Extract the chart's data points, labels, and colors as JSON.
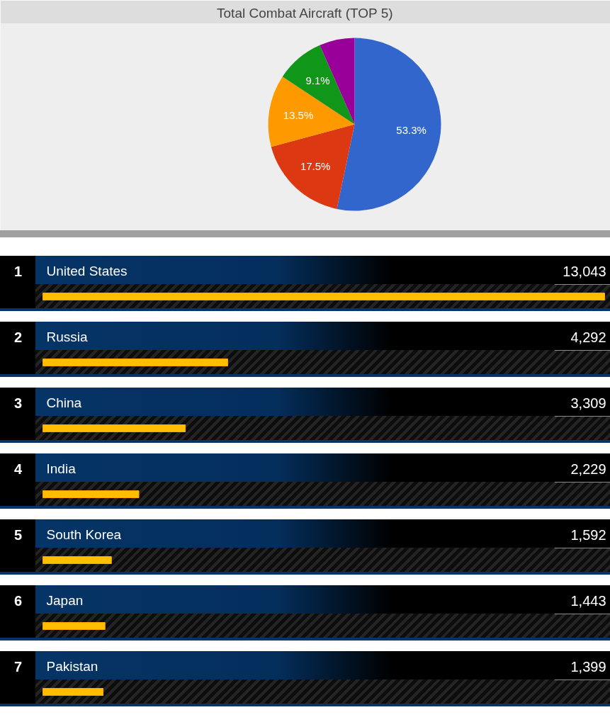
{
  "chart_data": [
    {
      "type": "pie",
      "title": "Total Combat Aircraft (TOP 5)",
      "categories": [
        null,
        null,
        null,
        null,
        null
      ],
      "values": [
        53.3,
        17.5,
        13.5,
        9.1,
        6.6
      ],
      "colors": [
        "#3366cc",
        "#dc3912",
        "#ff9900",
        "#109618",
        "#990099"
      ],
      "value_labels": [
        "53.3%",
        "17.5%",
        "13.5%",
        "9.1%",
        null
      ]
    },
    {
      "type": "bar",
      "orientation": "horizontal",
      "categories": [
        "United States",
        "Russia",
        "China",
        "India",
        "South Korea",
        "Japan",
        "Pakistan"
      ],
      "values": [
        13043,
        4292,
        3309,
        2229,
        1592,
        1443,
        1399
      ],
      "color": "#ffbf00",
      "value_labels": [
        "13,043",
        "4,292",
        "3,309",
        "2,229",
        "1,592",
        "1,443",
        "1,399"
      ],
      "annotations": [
        "1",
        "2",
        "3",
        "4",
        "5",
        "6",
        "7"
      ]
    }
  ]
}
